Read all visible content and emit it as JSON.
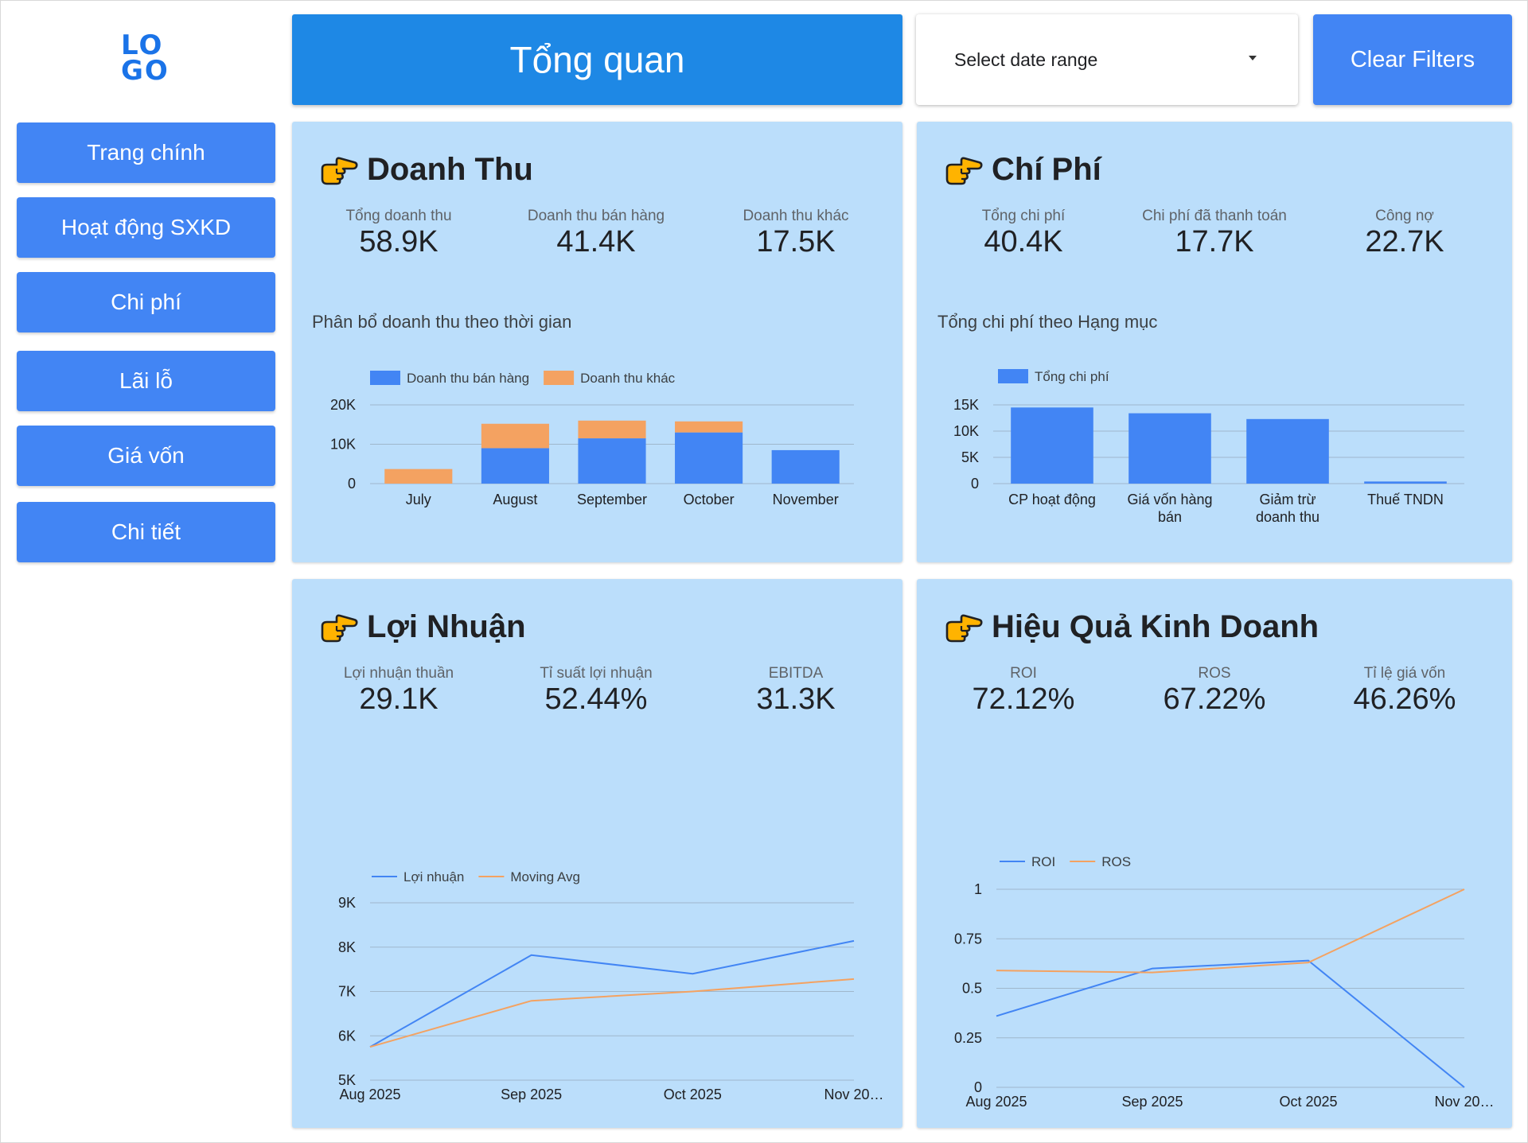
{
  "logo": {
    "line1": "LO",
    "line2": "GO"
  },
  "sidebar": {
    "items": [
      {
        "label": "Trang chính"
      },
      {
        "label": "Hoạt động SXKD"
      },
      {
        "label": "Chi phí"
      },
      {
        "label": "Lãi lỗ"
      },
      {
        "label": "Giá vốn"
      },
      {
        "label": "Chi tiết"
      }
    ]
  },
  "header": {
    "title": "Tổng quan",
    "date_range_placeholder": "Select date range",
    "clear_filters_label": "Clear Filters"
  },
  "colors": {
    "primary": "#4285f4",
    "header": "#1e88e5",
    "card_bg": "#bbdefb",
    "series_blue": "#4285f4",
    "series_orange": "#f4a261"
  },
  "cards": {
    "revenue": {
      "title": "Doanh Thu",
      "kpis": [
        {
          "label": "Tổng doanh thu",
          "value": "58.9K"
        },
        {
          "label": "Doanh thu bán hàng",
          "value": "41.4K"
        },
        {
          "label": "Doanh thu khác",
          "value": "17.5K"
        }
      ],
      "chart_title": "Phân bổ doanh thu theo thời gian"
    },
    "cost": {
      "title": "Chí Phí",
      "kpis": [
        {
          "label": "Tổng chi phí",
          "value": "40.4K"
        },
        {
          "label": "Chi phí đã thanh toán",
          "value": "17.7K"
        },
        {
          "label": "Công nợ",
          "value": "22.7K"
        }
      ],
      "chart_title": "Tổng chi phí theo Hạng mục"
    },
    "profit": {
      "title": "Lợi Nhuận",
      "kpis": [
        {
          "label": "Lợi nhuận thuần",
          "value": "29.1K"
        },
        {
          "label": "Tỉ suất lợi nhuận",
          "value": "52.44%"
        },
        {
          "label": "EBITDA",
          "value": "31.3K"
        }
      ]
    },
    "efficiency": {
      "title": "Hiệu Quả Kinh Doanh",
      "kpis": [
        {
          "label": "ROI",
          "value": "72.12%"
        },
        {
          "label": "ROS",
          "value": "67.22%"
        },
        {
          "label": "Tỉ lệ giá vốn",
          "value": "46.26%"
        }
      ]
    }
  },
  "chart_data": [
    {
      "id": "revenue",
      "type": "bar",
      "stacked": true,
      "title": "Phân bổ doanh thu theo thời gian",
      "categories": [
        "July",
        "August",
        "September",
        "October",
        "November"
      ],
      "series": [
        {
          "name": "Doanh thu bán hàng",
          "color": "#4285f4",
          "values": [
            0,
            9000,
            11500,
            13000,
            8500
          ]
        },
        {
          "name": "Doanh thu khác",
          "color": "#f4a261",
          "values": [
            3700,
            6200,
            4500,
            2800,
            0
          ]
        }
      ],
      "yticks": [
        0,
        10000,
        20000
      ],
      "ytick_labels": [
        "0",
        "10K",
        "20K"
      ],
      "ylim": [
        0,
        20000
      ],
      "legend": "top-left",
      "grid": true
    },
    {
      "id": "cost",
      "type": "bar",
      "title": "Tổng chi phí theo Hạng mục",
      "categories": [
        "CP hoạt động",
        "Giá vốn hàng bán",
        "Giảm trừ doanh thu",
        "Thuế TNDN"
      ],
      "category_lines": [
        [
          "CP hoạt động"
        ],
        [
          "Giá vốn hàng",
          "bán"
        ],
        [
          "Giảm trừ",
          "doanh thu"
        ],
        [
          "Thuế TNDN"
        ]
      ],
      "series": [
        {
          "name": "Tổng chi phí",
          "color": "#4285f4",
          "values": [
            14500,
            13400,
            12300,
            400
          ]
        }
      ],
      "yticks": [
        0,
        5000,
        10000,
        15000
      ],
      "ytick_labels": [
        "0",
        "5K",
        "10K",
        "15K"
      ],
      "ylim": [
        0,
        15000
      ],
      "legend": "top-left",
      "grid": true
    },
    {
      "id": "profit",
      "type": "line",
      "categories": [
        "Aug 2025",
        "Sep 2025",
        "Oct 2025",
        "Nov 20…"
      ],
      "series": [
        {
          "name": "Lợi nhuận",
          "color": "#4285f4",
          "values": [
            5750,
            7820,
            7400,
            8140
          ]
        },
        {
          "name": "Moving Avg",
          "color": "#f4a261",
          "values": [
            5750,
            6790,
            7000,
            7280
          ]
        }
      ],
      "yticks": [
        5000,
        6000,
        7000,
        8000,
        9000
      ],
      "ytick_labels": [
        "5K",
        "6K",
        "7K",
        "8K",
        "9K"
      ],
      "ylim": [
        5000,
        9000
      ],
      "legend": "top-left",
      "grid": true
    },
    {
      "id": "efficiency",
      "type": "line",
      "categories": [
        "Aug 2025",
        "Sep 2025",
        "Oct 2025",
        "Nov 20…"
      ],
      "series": [
        {
          "name": "ROI",
          "color": "#4285f4",
          "values": [
            0.36,
            0.6,
            0.64,
            0
          ]
        },
        {
          "name": "ROS",
          "color": "#f4a261",
          "values": [
            0.59,
            0.58,
            0.63,
            1
          ]
        }
      ],
      "yticks": [
        0,
        0.25,
        0.5,
        0.75,
        1
      ],
      "ytick_labels": [
        "0",
        "0.25",
        "0.5",
        "0.75",
        "1"
      ],
      "ylim": [
        0,
        1
      ],
      "legend": "top-left",
      "grid": true
    }
  ]
}
